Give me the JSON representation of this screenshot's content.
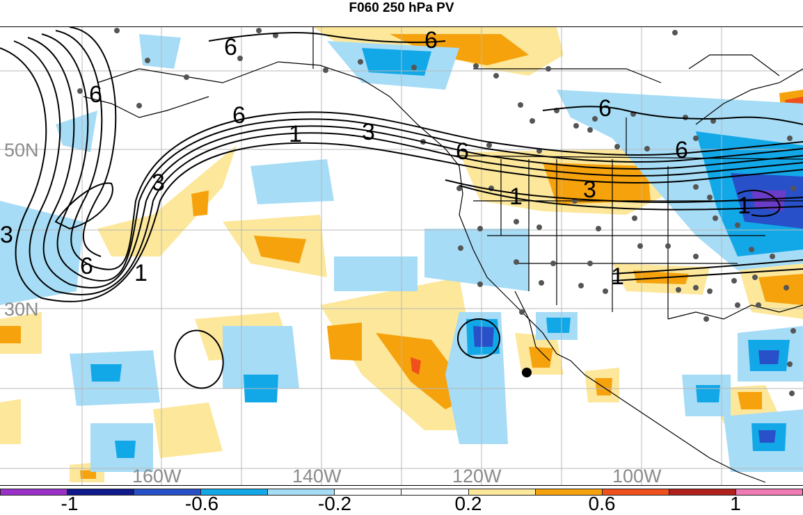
{
  "title": "F060 250 hPa PV",
  "map": {
    "lat_labels": [
      "50N",
      "30N"
    ],
    "lon_labels": [
      "160W",
      "140W",
      "120W",
      "100W"
    ],
    "contour_labels": [
      "6",
      "6",
      "6",
      "6",
      "6",
      "6",
      "6",
      "1",
      "3",
      "3",
      "1",
      "3",
      "6",
      "1",
      "1",
      "1"
    ]
  },
  "colorbar": {
    "labels": [
      "-1",
      "-0.6",
      "-0.2",
      "0.2",
      "0.6",
      "1"
    ],
    "colors": [
      "#9b30c8",
      "#101a8c",
      "#2850c8",
      "#12a8e8",
      "#a6dcf6",
      "#ffffff",
      "#ffffff",
      "#fce79a",
      "#f5a20c",
      "#f0501e",
      "#b0201c",
      "#f07ab4"
    ]
  }
}
